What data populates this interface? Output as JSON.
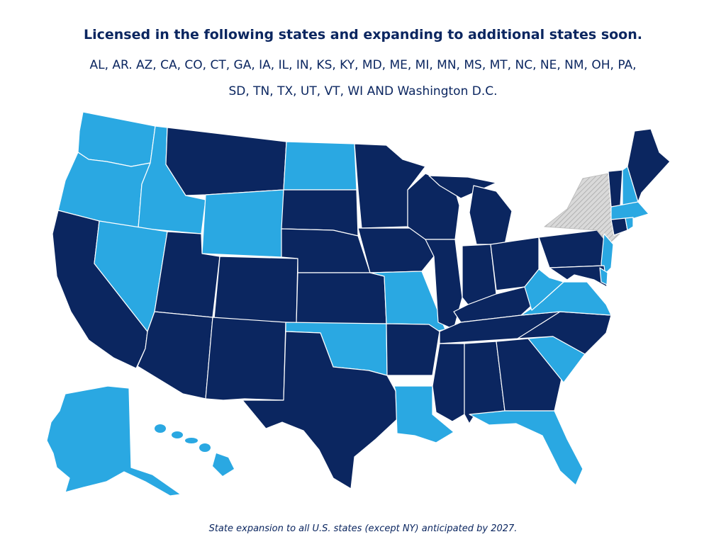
{
  "header": {
    "title": "Licensed in the following states and expanding to additional states soon.",
    "states_line_1": "AL, AR. AZ, CA, CO, CT, GA, IA, IL, IN, KS, KY, MD, ME, MI, MN, MS, MT, NC, NE, NM, OH, PA,",
    "states_line_2": "SD, TN, TX, UT, VT, WI AND Washington D.C."
  },
  "footnote": "State expansion to all U.S. states (except NY) anticipated by 2027.",
  "colors": {
    "licensed": "#0b2660",
    "expanding": "#2aa8e2",
    "excluded_hatch": "#bfbfbf",
    "background": "#ffffff"
  },
  "legend_categories": {
    "licensed": [
      "AL",
      "AR",
      "AZ",
      "CA",
      "CO",
      "CT",
      "GA",
      "IA",
      "IL",
      "IN",
      "KS",
      "KY",
      "MD",
      "ME",
      "MI",
      "MN",
      "MS",
      "MT",
      "NC",
      "NE",
      "NM",
      "OH",
      "PA",
      "SD",
      "TN",
      "TX",
      "UT",
      "VT",
      "WI",
      "DC"
    ],
    "expanding": [
      "WA",
      "OR",
      "ID",
      "NV",
      "WY",
      "ND",
      "OK",
      "MO",
      "LA",
      "FL",
      "SC",
      "VA",
      "WV",
      "NJ",
      "DE",
      "NH",
      "MA",
      "RI",
      "AK",
      "HI"
    ],
    "excluded": [
      "NY"
    ]
  }
}
